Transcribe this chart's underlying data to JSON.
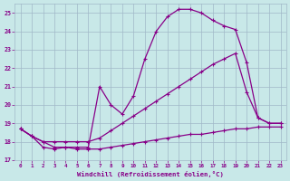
{
  "xlabel": "Windchill (Refroidissement éolien,°C)",
  "background_color": "#c8e8e8",
  "grid_color": "#a0b8c8",
  "line_color": "#880088",
  "x_ticks": [
    0,
    1,
    2,
    3,
    4,
    5,
    6,
    7,
    8,
    9,
    10,
    11,
    12,
    13,
    14,
    15,
    16,
    17,
    18,
    19,
    20,
    21,
    22,
    23
  ],
  "xlim": [
    -0.5,
    23.5
  ],
  "ylim": [
    17,
    25.5
  ],
  "y_ticks": [
    17,
    18,
    19,
    20,
    21,
    22,
    23,
    24,
    25
  ],
  "line_top_x": [
    0,
    1,
    2,
    3,
    4,
    5,
    6,
    7,
    8,
    9,
    10,
    11,
    12,
    13,
    14,
    15,
    16,
    17,
    18,
    19,
    20,
    21,
    22,
    23
  ],
  "line_top_y": [
    18.7,
    18.3,
    18.0,
    17.7,
    17.7,
    17.7,
    17.7,
    21.0,
    20.0,
    19.5,
    20.5,
    22.5,
    24.0,
    24.8,
    25.2,
    25.2,
    25.0,
    24.6,
    24.3,
    24.1,
    22.3,
    19.3,
    19.0,
    19.0
  ],
  "line_mid_x": [
    0,
    1,
    2,
    3,
    4,
    5,
    6,
    7,
    8,
    9,
    10,
    11,
    12,
    13,
    14,
    15,
    16,
    17,
    18,
    19,
    20,
    21,
    22,
    23
  ],
  "line_mid_y": [
    18.7,
    18.3,
    18.0,
    18.0,
    18.0,
    18.0,
    18.0,
    18.2,
    18.6,
    19.0,
    19.4,
    19.8,
    20.2,
    20.6,
    21.0,
    21.4,
    21.8,
    22.2,
    22.5,
    22.8,
    20.7,
    19.3,
    19.0,
    19.0
  ],
  "line_bot_x": [
    0,
    1,
    2,
    3,
    4,
    5,
    6,
    7,
    8,
    9,
    10,
    11,
    12,
    13,
    14,
    15,
    16,
    17,
    18,
    19,
    20,
    21,
    22,
    23
  ],
  "line_bot_y": [
    18.7,
    18.3,
    17.7,
    17.6,
    17.7,
    17.6,
    17.6,
    17.6,
    17.7,
    17.8,
    17.9,
    18.0,
    18.1,
    18.2,
    18.3,
    18.4,
    18.4,
    18.5,
    18.6,
    18.7,
    18.7,
    18.8,
    18.8,
    18.8
  ]
}
